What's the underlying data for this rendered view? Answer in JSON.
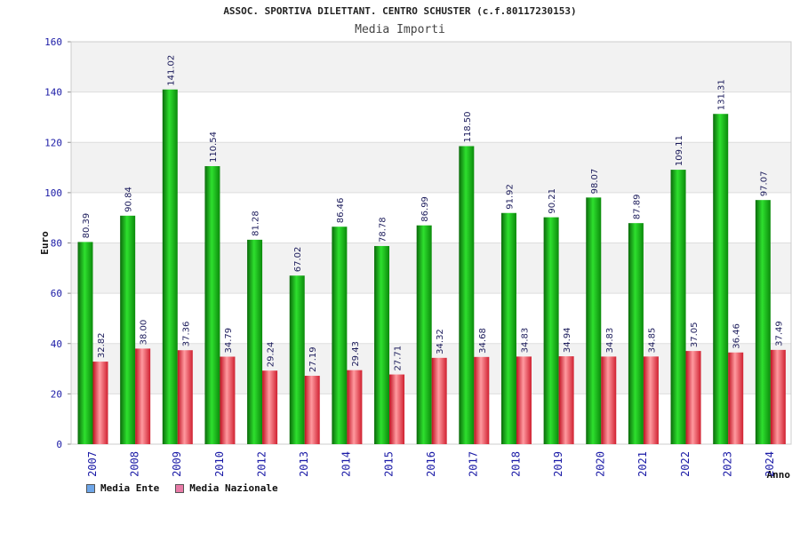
{
  "header": {
    "title": "ASSOC. SPORTIVA DILETTANT. CENTRO SCHUSTER (c.f.80117230153)",
    "subtitle": "Media Importi"
  },
  "legend": {
    "items": [
      {
        "label": "Media Ente",
        "color": "#6ea6e8"
      },
      {
        "label": "Media Nazionale",
        "color": "#e87aa6"
      }
    ]
  },
  "colors": {
    "ente_bar": "#11b511",
    "nazionale_bar": "#e8303c",
    "axis_labels": "#1a1aa6",
    "band": "#f2f2f2",
    "grid": "#dddddd"
  },
  "chart_data": {
    "type": "bar",
    "title": "ASSOC. SPORTIVA DILETTANT. CENTRO SCHUSTER (c.f.80117230153)",
    "subtitle": "Media Importi",
    "xlabel": "Anno",
    "ylabel": "Euro",
    "ylim": [
      0,
      160
    ],
    "yticks": [
      0,
      20,
      40,
      60,
      80,
      100,
      120,
      140,
      160
    ],
    "grid": true,
    "legend_position": "bottom-left",
    "categories": [
      "2007",
      "2008",
      "2009",
      "2010",
      "2012",
      "2013",
      "2014",
      "2015",
      "2016",
      "2017",
      "2018",
      "2019",
      "2020",
      "2021",
      "2022",
      "2023",
      "2024"
    ],
    "series": [
      {
        "name": "Media Ente",
        "values": [
          80.39,
          90.84,
          141.02,
          110.54,
          81.28,
          67.02,
          86.46,
          78.78,
          86.99,
          118.5,
          91.92,
          90.21,
          98.07,
          87.89,
          109.11,
          131.31,
          97.07
        ],
        "labels": [
          "80.39",
          "90.84",
          "141.02",
          "110.54",
          "81.28",
          "67.02",
          "86.46",
          "78.78",
          "86.99",
          "118.50",
          "91.92",
          "90.21",
          "98.07",
          "87.89",
          "109.11",
          "131.31",
          "97.07"
        ]
      },
      {
        "name": "Media Nazionale",
        "values": [
          32.82,
          38.0,
          37.36,
          34.79,
          29.24,
          27.19,
          29.43,
          27.71,
          34.32,
          34.68,
          34.83,
          34.94,
          34.83,
          34.85,
          37.05,
          36.46,
          37.49
        ],
        "labels": [
          "32.82",
          "38.00",
          "37.36",
          "34.79",
          "29.24",
          "27.19",
          "29.43",
          "27.71",
          "34.32",
          "34.68",
          "34.83",
          "34.94",
          "34.83",
          "34.85",
          "37.05",
          "36.46",
          "37.49"
        ]
      }
    ]
  }
}
